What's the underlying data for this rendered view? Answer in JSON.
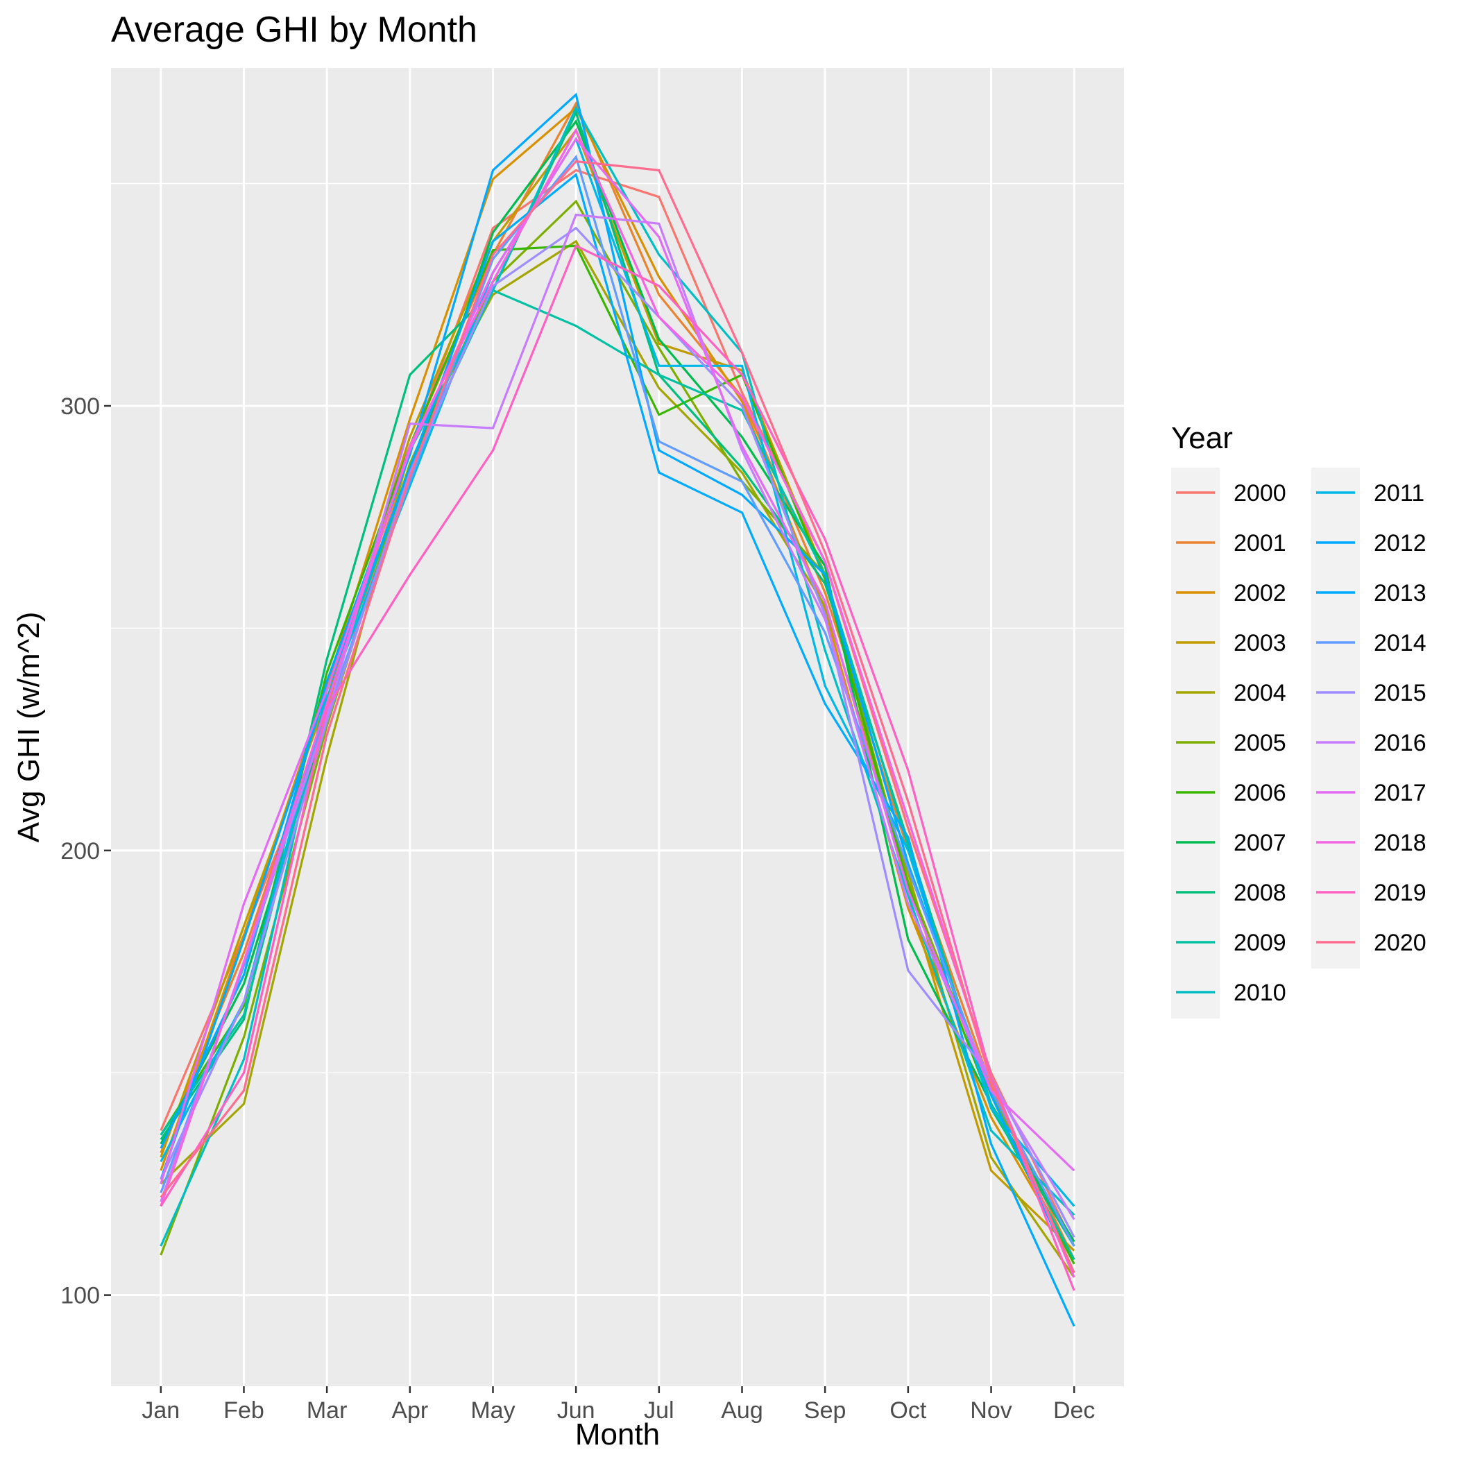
{
  "chart_data": {
    "type": "line",
    "title": "Average GHI by Month",
    "xlabel": "Month",
    "ylabel": "Avg GHI (w/m^2)",
    "categories": [
      "Jan",
      "Feb",
      "Mar",
      "Apr",
      "May",
      "Jun",
      "Jul",
      "Aug",
      "Sep",
      "Oct",
      "Nov",
      "Dec"
    ],
    "ylim": [
      79.5,
      376
    ],
    "y_ticks": [
      100,
      200,
      300
    ],
    "y_tick_labels": [
      "100",
      "200",
      "300"
    ],
    "grid": true,
    "legend": {
      "title": "Year",
      "position": "right",
      "columns": 2
    },
    "series": [
      {
        "name": "2000",
        "color": "#F8766D",
        "values": [
          137,
          181,
          228,
          290,
          340,
          353,
          347,
          303,
          265,
          205,
          150,
          111
        ]
      },
      {
        "name": "2001",
        "color": "#EA8331",
        "values": [
          132,
          177,
          232,
          291,
          334,
          368,
          325,
          302,
          258,
          200,
          147,
          108
        ]
      },
      {
        "name": "2002",
        "color": "#D89000",
        "values": [
          128,
          181,
          237,
          297,
          351,
          367,
          329,
          301,
          254,
          187,
          140,
          108
        ]
      },
      {
        "name": "2003",
        "color": "#C09B00",
        "values": [
          131,
          183,
          234,
          293,
          337,
          362,
          314,
          308,
          262,
          190,
          128,
          110
        ]
      },
      {
        "name": "2004",
        "color": "#A3A500",
        "values": [
          125,
          143,
          221,
          290,
          325,
          337,
          304,
          285,
          255,
          195,
          131,
          104
        ]
      },
      {
        "name": "2005",
        "color": "#7CAE00",
        "values": [
          109,
          158,
          228,
          287,
          328,
          346,
          313,
          283,
          262,
          193,
          145,
          111
        ]
      },
      {
        "name": "2006",
        "color": "#39B600",
        "values": [
          136,
          165,
          240,
          291,
          335,
          336,
          298,
          307,
          261,
          192,
          143,
          107
        ]
      },
      {
        "name": "2007",
        "color": "#00BB4E",
        "values": [
          134,
          170,
          230,
          284,
          339,
          364,
          315,
          293,
          264,
          180,
          143,
          112
        ]
      },
      {
        "name": "2008",
        "color": "#00BF7D",
        "values": [
          135,
          162,
          243,
          307,
          326,
          366,
          307,
          286,
          260,
          202,
          142,
          111
        ]
      },
      {
        "name": "2009",
        "color": "#00C1A3",
        "values": [
          136,
          163,
          234,
          286,
          326,
          318,
          307,
          299,
          262,
          201,
          143,
          108
        ]
      },
      {
        "name": "2010",
        "color": "#00BFC4",
        "values": [
          111,
          153,
          236,
          290,
          326,
          367,
          334,
          312,
          245,
          190,
          137,
          118
        ]
      },
      {
        "name": "2011",
        "color": "#00B8E7",
        "values": [
          130,
          166,
          234,
          282,
          330,
          360,
          309,
          309,
          237,
          200,
          142,
          120
        ]
      },
      {
        "name": "2012",
        "color": "#00A9FF",
        "values": [
          133,
          172,
          238,
          289,
          353,
          370,
          290,
          280,
          262,
          197,
          145,
          105
        ]
      },
      {
        "name": "2013",
        "color": "#00ABFD",
        "values": [
          126,
          180,
          236,
          286,
          337,
          352,
          285,
          276,
          233,
          203,
          134,
          93
        ]
      },
      {
        "name": "2014",
        "color": "#619CFF",
        "values": [
          123,
          174,
          231,
          283,
          333,
          356,
          292,
          283,
          249,
          196,
          146,
          111
        ]
      },
      {
        "name": "2015",
        "color": "#9E8DFF",
        "values": [
          126,
          166,
          229,
          285,
          327,
          340,
          320,
          300,
          253,
          173,
          149,
          113
        ]
      },
      {
        "name": "2016",
        "color": "#C77CFF",
        "values": [
          121,
          175,
          230,
          296,
          295,
          343,
          341,
          290,
          252,
          188,
          148,
          117
        ]
      },
      {
        "name": "2017",
        "color": "#E46BF4",
        "values": [
          125,
          188,
          236,
          290,
          330,
          360,
          338,
          291,
          256,
          191,
          146,
          128
        ]
      },
      {
        "name": "2018",
        "color": "#F564E3",
        "values": [
          120,
          175,
          233,
          291,
          328,
          362,
          320,
          302,
          265,
          207,
          149,
          104
        ]
      },
      {
        "name": "2019",
        "color": "#FF61C3",
        "values": [
          120,
          150,
          232,
          262,
          290,
          336,
          327,
          307,
          270,
          218,
          149,
          101
        ]
      },
      {
        "name": "2020",
        "color": "#FF6C90",
        "values": [
          122,
          146,
          226,
          284,
          334,
          355,
          353,
          312,
          267,
          211,
          148,
          105
        ]
      }
    ]
  }
}
